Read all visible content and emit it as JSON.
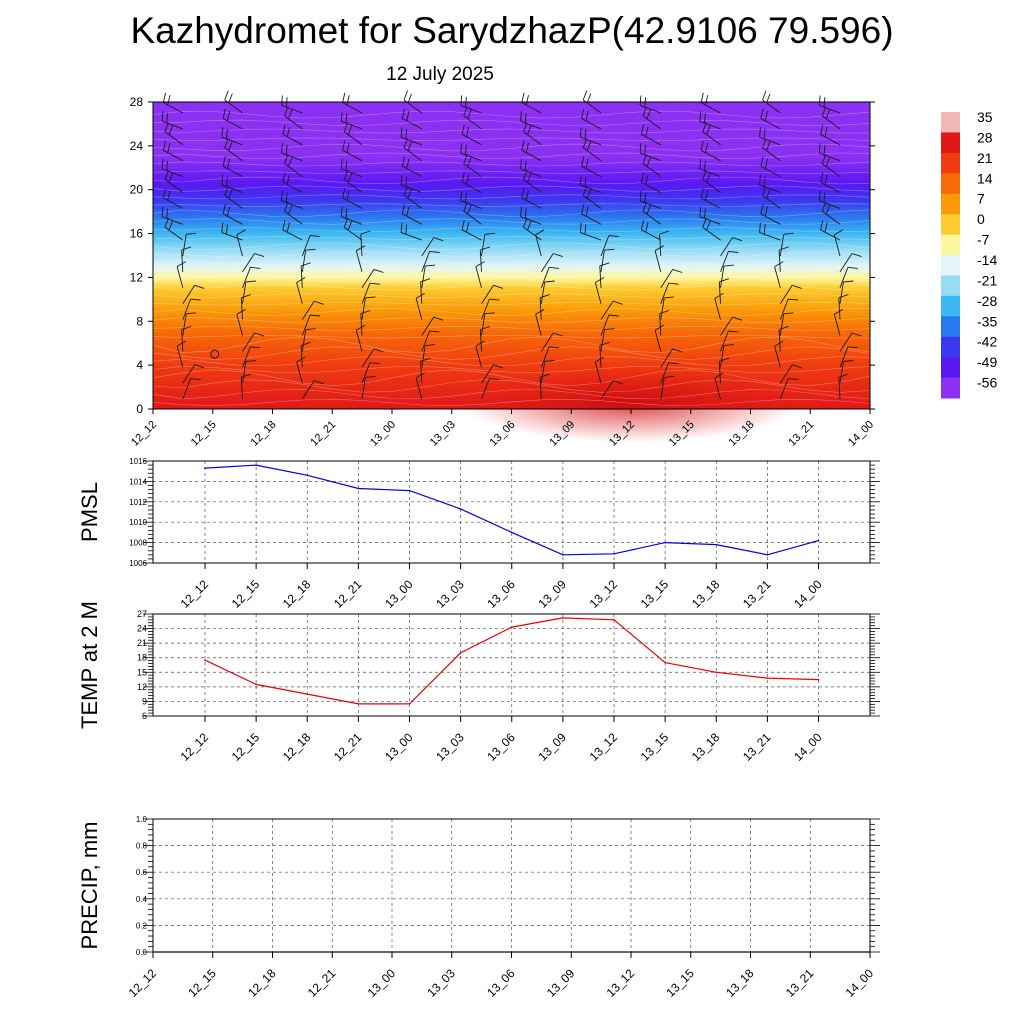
{
  "header": {
    "title": "Kazhydromet for SarydzhazP(42.9106 79.596)",
    "subtitle": "12 July 2025"
  },
  "chart_data": [
    {
      "type": "heatmap",
      "title": "",
      "xlabel": "",
      "ylabel": "",
      "time_labels": [
        "12_12",
        "12_15",
        "12_18",
        "12_21",
        "13_00",
        "13_03",
        "13_06",
        "13_09",
        "13_12",
        "13_15",
        "13_18",
        "13_21",
        "14_00"
      ],
      "yticks": [
        0,
        4,
        8,
        12,
        16,
        20,
        24,
        28
      ],
      "ylim": [
        0,
        28
      ],
      "colorbar": {
        "labels": [
          "35",
          "28",
          "21",
          "14",
          "7",
          "0",
          "-7",
          "-14",
          "-21",
          "-28",
          "-35",
          "-42",
          "-49",
          "-56"
        ],
        "colors": [
          "#f2b8b8",
          "#e01818",
          "#f03c10",
          "#f86a08",
          "#fb9a08",
          "#fdcb30",
          "#fdf8a0",
          "#e4f4f8",
          "#96dcf4",
          "#3cb8f2",
          "#2a78f0",
          "#3c38f0",
          "#5a18f2",
          "#8c30f4"
        ]
      },
      "temperature_profile": [
        {
          "level": 0,
          "value": 28
        },
        {
          "level": 4,
          "value": 21
        },
        {
          "level": 7,
          "value": 14
        },
        {
          "level": 9,
          "value": 7
        },
        {
          "level": 11,
          "value": 0
        },
        {
          "level": 12,
          "value": -7
        },
        {
          "level": 13,
          "value": -14
        },
        {
          "level": 14.5,
          "value": -21
        },
        {
          "level": 16,
          "value": -28
        },
        {
          "level": 17.5,
          "value": -35
        },
        {
          "level": 19,
          "value": -42
        },
        {
          "level": 20.5,
          "value": -49
        },
        {
          "level": 23,
          "value": -56
        },
        {
          "level": 28,
          "value": -56
        }
      ],
      "wind_barbs": "present"
    },
    {
      "type": "line",
      "ylabel": "PMSL",
      "ylim": [
        1006,
        1016
      ],
      "yticks": [
        1006,
        1008,
        1010,
        1012,
        1014,
        1016
      ],
      "categories": [
        "12_12",
        "12_15",
        "12_18",
        "12_21",
        "13_00",
        "13_03",
        "13_06",
        "13_09",
        "13_12",
        "13_15",
        "13_18",
        "13_21",
        "14_00"
      ],
      "series": [
        {
          "values": [
            1015.3,
            1015.6,
            1014.6,
            1013.3,
            1013.1,
            1011.3,
            1009.0,
            1006.8,
            1006.9,
            1008.0,
            1007.8,
            1006.8,
            1008.2
          ],
          "color": "#0000ee"
        }
      ],
      "grid": true
    },
    {
      "type": "line",
      "ylabel": "TEMP at 2 M",
      "ylim": [
        6,
        27
      ],
      "yticks": [
        6,
        9,
        12,
        15,
        18,
        21,
        24,
        27
      ],
      "categories": [
        "12_12",
        "12_15",
        "12_18",
        "12_21",
        "13_00",
        "13_03",
        "13_06",
        "13_09",
        "13_12",
        "13_15",
        "13_18",
        "13_21",
        "14_00"
      ],
      "series": [
        {
          "values": [
            17.5,
            12.5,
            10.5,
            8.5,
            8.5,
            19.0,
            24.3,
            26.2,
            25.8,
            17.0,
            15.0,
            13.8,
            13.5
          ],
          "color": "#ee0000"
        }
      ],
      "grid": true
    },
    {
      "type": "line",
      "ylabel": "PRECIP, mm",
      "ylim": [
        0.0,
        1.0
      ],
      "yticks": [
        "0.0",
        "0.2",
        "0.4",
        "0.6",
        "0.8",
        "1.0"
      ],
      "categories": [
        "12_12",
        "12_15",
        "12_18",
        "12_21",
        "13_00",
        "13_03",
        "13_06",
        "13_09",
        "13_12",
        "13_15",
        "13_18",
        "13_21",
        "14_00"
      ],
      "series": [
        {
          "values": [
            0,
            0,
            0,
            0,
            0,
            0,
            0,
            0,
            0,
            0,
            0,
            0,
            0
          ],
          "color": "#006400"
        }
      ],
      "grid": true
    }
  ]
}
